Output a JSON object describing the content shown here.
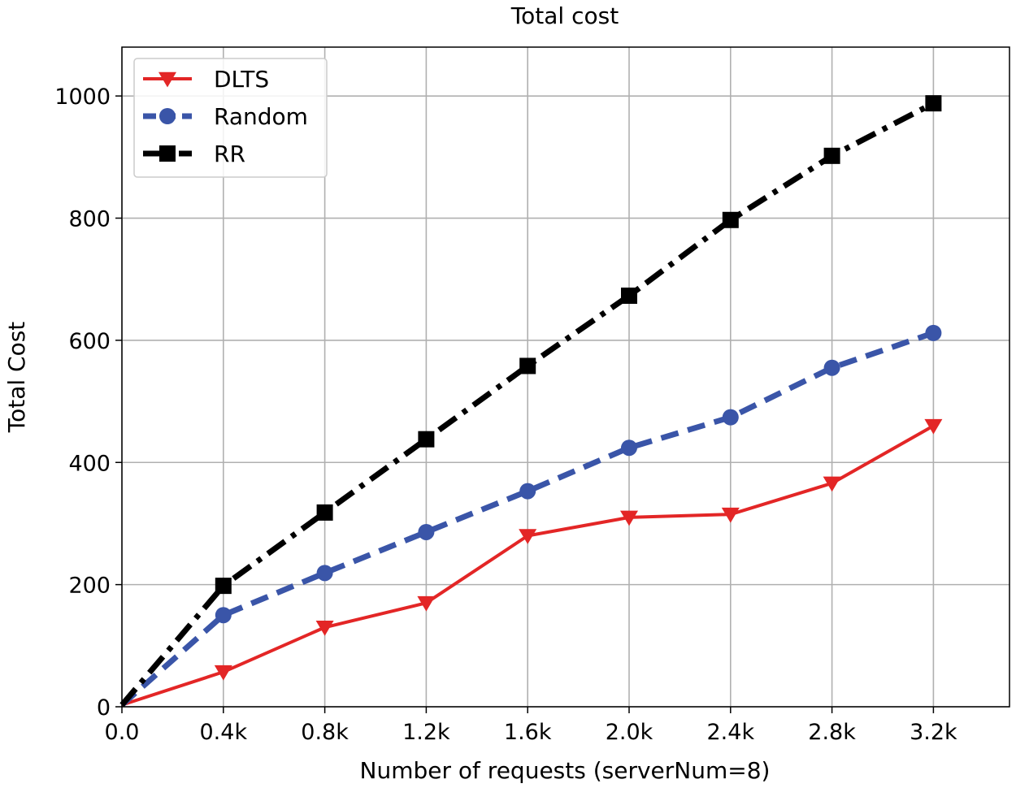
{
  "chart_data": {
    "type": "line",
    "title": "Total cost",
    "xlabel": "Number of requests (serverNum=8)",
    "ylabel": "Total Cost",
    "x": [
      0,
      400,
      800,
      1200,
      1600,
      2000,
      2400,
      2800,
      3200
    ],
    "x_tick_labels": [
      "0.0",
      "0.4k",
      "0.8k",
      "1.2k",
      "1.6k",
      "2.0k",
      "2.4k",
      "2.8k",
      "3.2k"
    ],
    "y_ticks": [
      0,
      200,
      400,
      600,
      800,
      1000
    ],
    "xlim": [
      0,
      3500
    ],
    "ylim": [
      0,
      1080
    ],
    "grid": true,
    "legend_position": "top-left",
    "series": [
      {
        "name": "DLTS",
        "color": "#e32626",
        "line_style": "solid",
        "marker": "triangle-down",
        "values": [
          3,
          57,
          130,
          170,
          280,
          310,
          315,
          366,
          460
        ]
      },
      {
        "name": "Random",
        "color": "#3a55a8",
        "line_style": "dashed",
        "marker": "circle",
        "values": [
          3,
          150,
          219,
          286,
          353,
          424,
          474,
          555,
          612
        ]
      },
      {
        "name": "RR",
        "color": "#000000",
        "line_style": "dashdot",
        "marker": "square",
        "values": [
          3,
          198,
          318,
          438,
          558,
          673,
          797,
          902,
          988
        ]
      }
    ]
  }
}
